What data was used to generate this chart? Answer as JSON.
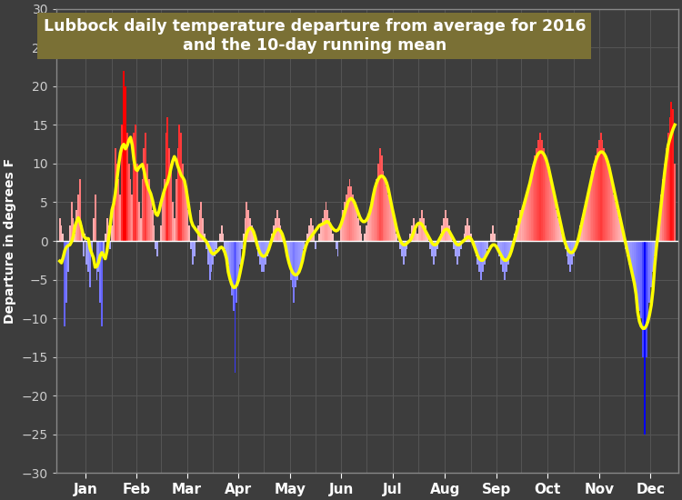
{
  "title_line1": "Lubbock daily temperature departure from average for 2016",
  "title_line2": "and the 10-day running mean",
  "ylabel": "Departure in degrees F",
  "xlabel_months": [
    "Jan",
    "Feb",
    "Mar",
    "Apr",
    "May",
    "Jun",
    "Jul",
    "Aug",
    "Sep",
    "Oct",
    "Nov",
    "Dec"
  ],
  "ylim": [
    -30,
    30
  ],
  "bg_color": "#3d3d3d",
  "title_bg_color": "#7a7035",
  "title_text_color": "#ffffff",
  "running_mean_color": "#ffff00",
  "grid_color": "#555555",
  "tick_color": "#cccccc",
  "fig_bg_color": "#3d3d3d"
}
